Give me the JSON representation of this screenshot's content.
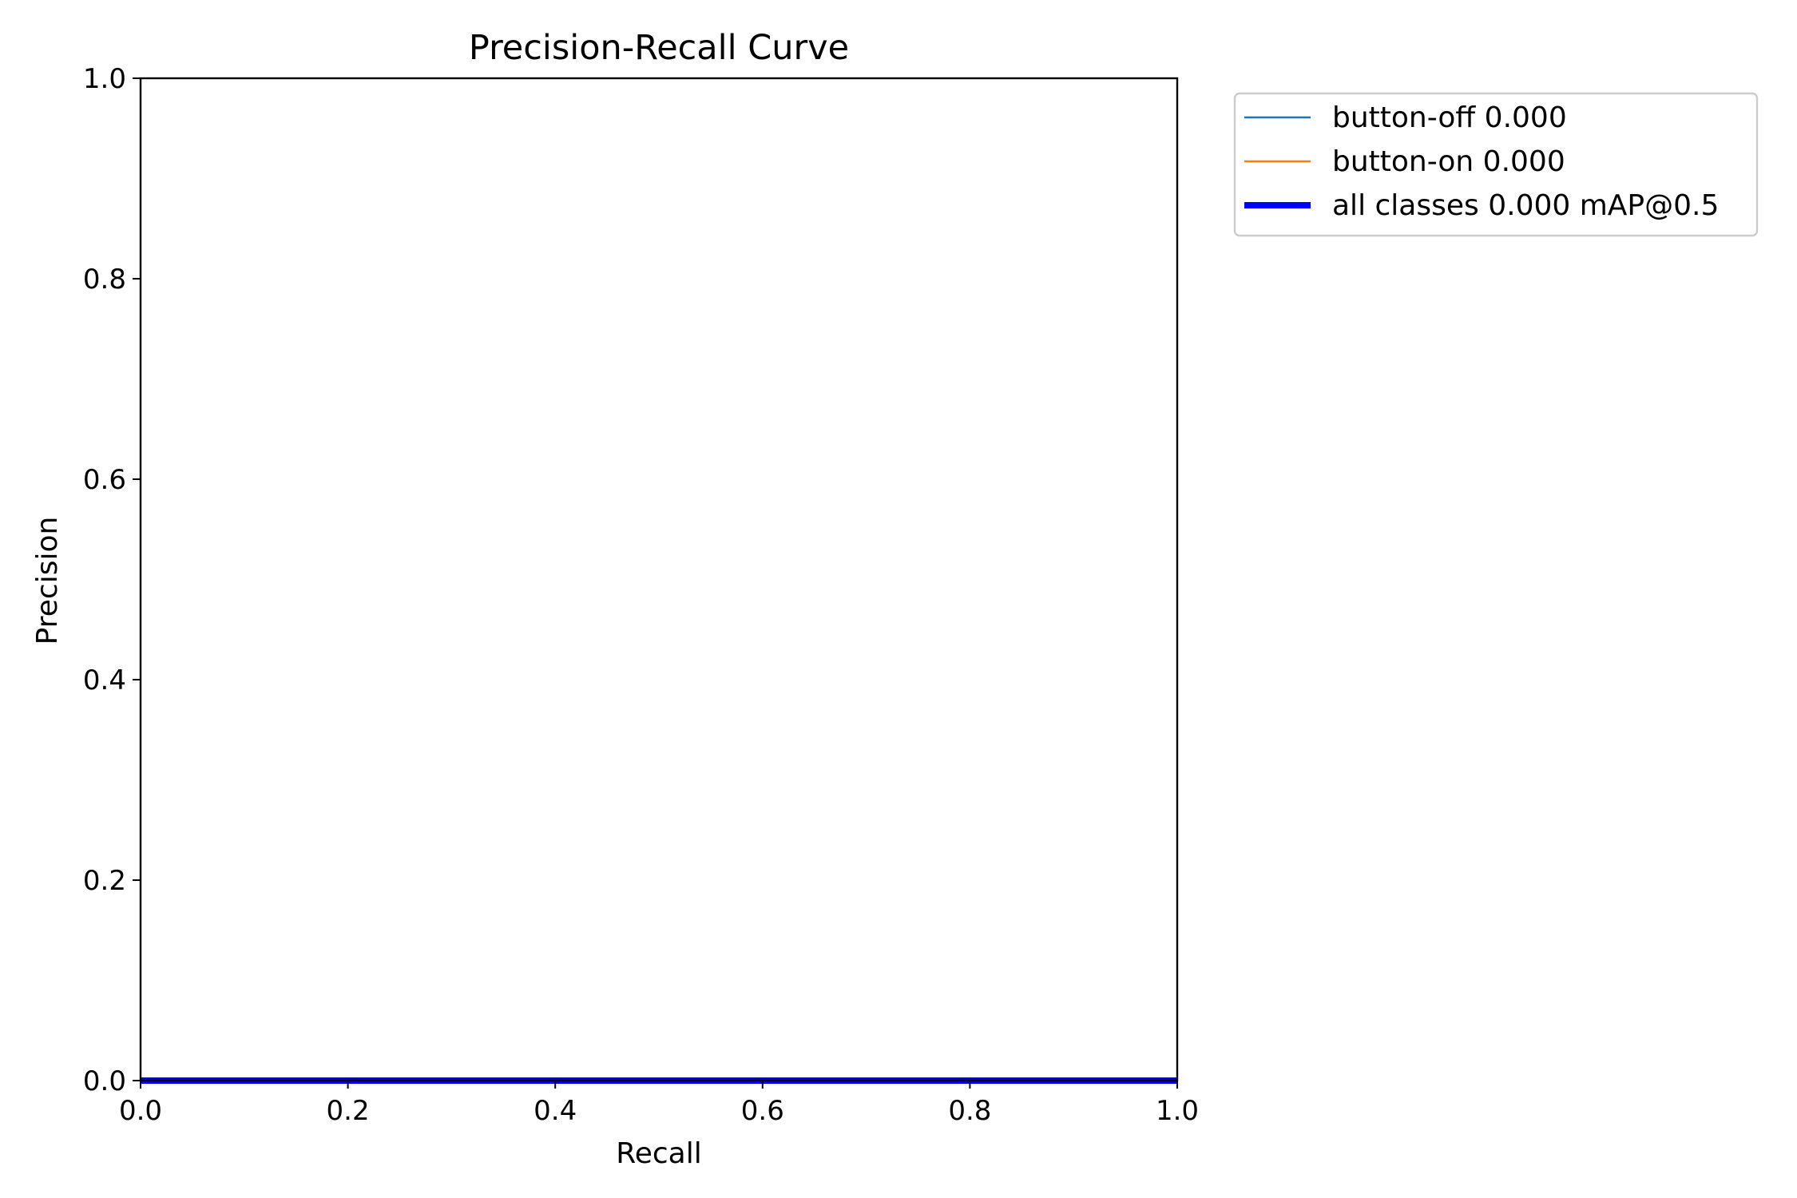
{
  "chart_data": {
    "type": "line",
    "title": "Precision-Recall Curve",
    "xlabel": "Recall",
    "ylabel": "Precision",
    "xlim": [
      0,
      1
    ],
    "ylim": [
      0,
      1
    ],
    "xticks": [
      "0.0",
      "0.2",
      "0.4",
      "0.6",
      "0.8",
      "1.0"
    ],
    "yticks": [
      "0.0",
      "0.2",
      "0.4",
      "0.6",
      "0.8",
      "1.0"
    ],
    "grid": false,
    "legend_position": "outside top-right",
    "series": [
      {
        "name": "button-off 0.000",
        "color": "#1f77b4",
        "x": [
          0,
          1
        ],
        "y": [
          0,
          0
        ]
      },
      {
        "name": "button-on 0.000",
        "color": "#ff7f0e",
        "x": [
          0,
          1
        ],
        "y": [
          0,
          0
        ]
      },
      {
        "name": "all classes 0.000 mAP@0.5",
        "color": "#0000ff",
        "x": [
          0,
          1
        ],
        "y": [
          0,
          0
        ]
      }
    ]
  }
}
